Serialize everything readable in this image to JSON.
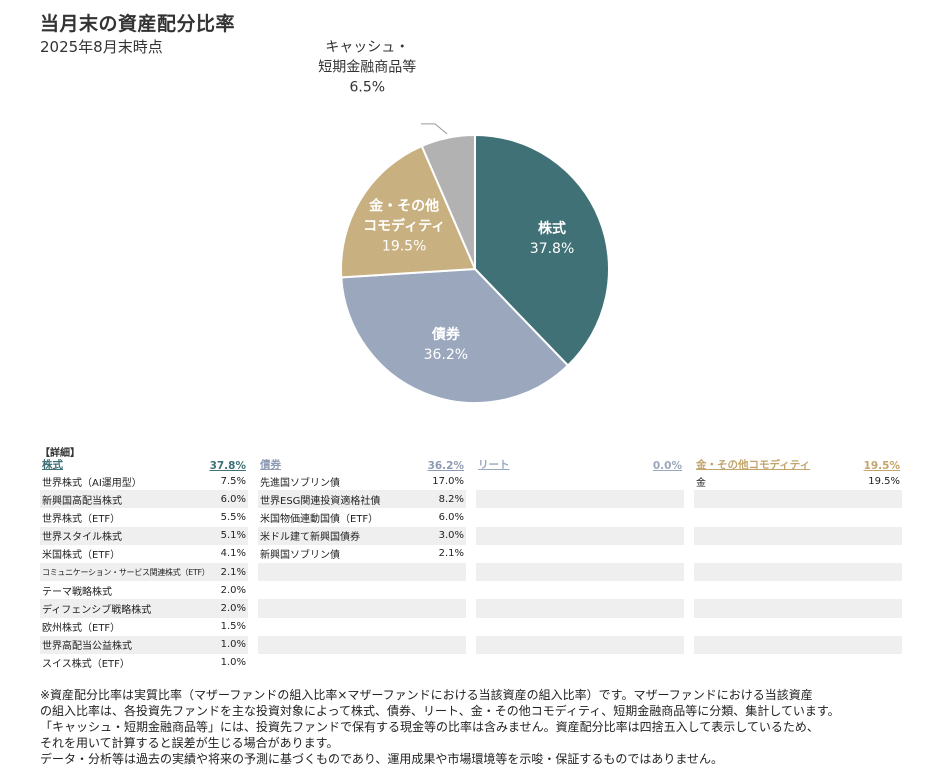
{
  "title": "当月末の資産配分比率",
  "subtitle": "2025年8月末時点",
  "chart_data": {
    "type": "pie",
    "title": "当月末の資産配分比率",
    "subtitle": "2025年8月末時点",
    "slices": [
      {
        "label": "株式",
        "value": 37.8,
        "value_label": "37.8%",
        "color": "#3f7176"
      },
      {
        "label": "債券",
        "value": 36.2,
        "value_label": "36.2%",
        "color": "#9aa7bd"
      },
      {
        "label": "金・その他コモディティ",
        "value": 19.5,
        "value_label": "19.5%",
        "color": "#c8b080"
      },
      {
        "label": "キャッシュ・短期金融商品等",
        "value": 6.5,
        "value_label": "6.5%",
        "color": "#b2b2b2"
      }
    ]
  },
  "detail": {
    "heading": "【詳細】",
    "columns": [
      {
        "name": "株式",
        "total": "37.8%",
        "color": "#3f7176",
        "rows": [
          {
            "label": "世界株式（AI運用型）",
            "value": "7.5%"
          },
          {
            "label": "新興国高配当株式",
            "value": "6.0%"
          },
          {
            "label": "世界株式（ETF）",
            "value": "5.5%"
          },
          {
            "label": "世界スタイル株式",
            "value": "5.1%"
          },
          {
            "label": "米国株式（ETF）",
            "value": "4.1%"
          },
          {
            "label": "コミュニケーション・サービス関連株式（ETF）",
            "value": "2.1%"
          },
          {
            "label": "テーマ戦略株式",
            "value": "2.0%"
          },
          {
            "label": "ディフェンシブ戦略株式",
            "value": "2.0%"
          },
          {
            "label": "欧州株式（ETF）",
            "value": "1.5%"
          },
          {
            "label": "世界高配当公益株式",
            "value": "1.0%"
          },
          {
            "label": "スイス株式（ETF）",
            "value": "1.0%"
          }
        ]
      },
      {
        "name": "債券",
        "total": "36.2%",
        "color": "#8e9bb3",
        "rows": [
          {
            "label": "先進国ソブリン債",
            "value": "17.0%"
          },
          {
            "label": "世界ESG関連投資適格社債",
            "value": "8.2%"
          },
          {
            "label": "米国物価連動国債（ETF）",
            "value": "6.0%"
          },
          {
            "label": "米ドル建て新興国債券",
            "value": "3.0%"
          },
          {
            "label": "新興国ソブリン債",
            "value": "2.1%"
          }
        ]
      },
      {
        "name": "リート",
        "total": "0.0%",
        "color": "#9aa7bd",
        "rows": []
      },
      {
        "name": "金・その他コモディティ",
        "total": "19.5%",
        "color": "#c3a46b",
        "rows": [
          {
            "label": "金",
            "value": "19.5%"
          }
        ]
      }
    ]
  },
  "footnote": [
    "※資産配分比率は実質比率（マザーファンドの組入比率×マザーファンドにおける当該資産の組入比率）です。マザーファンドにおける当該資産",
    "の組入比率は、各投資先ファンドを主な投資対象によって株式、債券、リート、金・その他コモディティ、短期金融商品等に分類、集計しています。",
    "「キャッシュ・短期金融商品等」には、投資先ファンドで保有する現金等の比率は含みません。資産配分比率は四捨五入して表示しているため、",
    "それを用いて計算すると誤差が生じる場合があります。",
    "データ・分析等は過去の実績や将来の予測に基づくものであり、運用成果や市場環境等を示唆・保証するものではありません。"
  ]
}
